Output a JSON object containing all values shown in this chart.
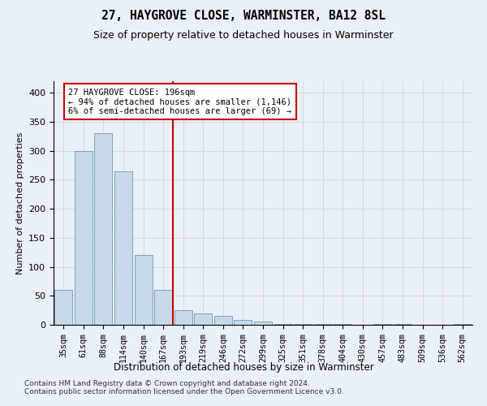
{
  "title": "27, HAYGROVE CLOSE, WARMINSTER, BA12 8SL",
  "subtitle": "Size of property relative to detached houses in Warminster",
  "xlabel": "Distribution of detached houses by size in Warminster",
  "ylabel": "Number of detached properties",
  "bin_labels": [
    "35sqm",
    "61sqm",
    "88sqm",
    "114sqm",
    "140sqm",
    "167sqm",
    "193sqm",
    "219sqm",
    "246sqm",
    "272sqm",
    "299sqm",
    "325sqm",
    "351sqm",
    "378sqm",
    "404sqm",
    "430sqm",
    "457sqm",
    "483sqm",
    "509sqm",
    "536sqm",
    "562sqm"
  ],
  "bar_values": [
    60,
    300,
    330,
    265,
    120,
    60,
    25,
    20,
    15,
    8,
    5,
    1,
    2,
    1,
    2,
    0,
    1,
    1,
    0,
    0,
    1
  ],
  "bar_color": "#c8d8e8",
  "bar_edge_color": "#6699bb",
  "vline_color": "#cc0000",
  "vline_pos": 5.5,
  "annotation_line1": "27 HAYGROVE CLOSE: 196sqm",
  "annotation_line2": "← 94% of detached houses are smaller (1,146)",
  "annotation_line3": "6% of semi-detached houses are larger (69) →",
  "annotation_box_color": "#ffffff",
  "annotation_box_edge": "#cc0000",
  "ylim": [
    0,
    420
  ],
  "yticks": [
    0,
    50,
    100,
    150,
    200,
    250,
    300,
    350,
    400
  ],
  "footnote1": "Contains HM Land Registry data © Crown copyright and database right 2024.",
  "footnote2": "Contains public sector information licensed under the Open Government Licence v3.0.",
  "background_color": "#eaf0f8",
  "plot_background": "#eaf0f8"
}
